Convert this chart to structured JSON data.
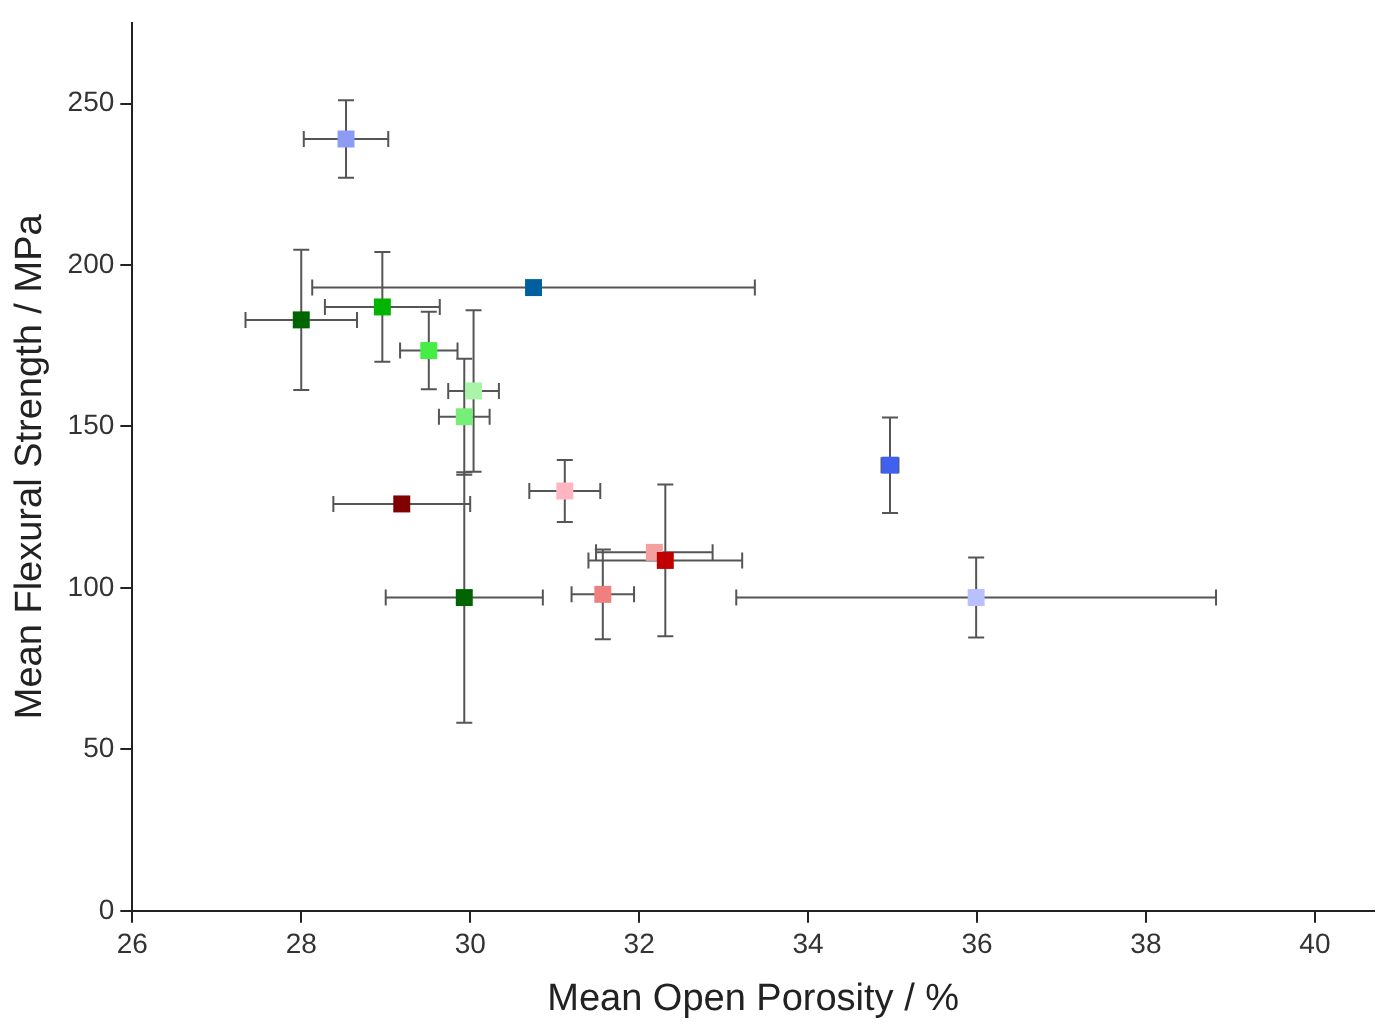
{
  "chart_data": {
    "type": "scatter",
    "xlabel": "Mean Open Porosity / %",
    "ylabel": "Mean Flexural Strength / MPa",
    "xlim": [
      26,
      40.7
    ],
    "xticks": [
      26,
      28,
      30,
      32,
      34,
      36,
      38,
      40
    ],
    "ylim": [
      0,
      275
    ],
    "yticks": [
      0,
      50,
      100,
      150,
      200,
      250
    ],
    "grid": false,
    "legend": false,
    "marker": "square",
    "x": [
      28.53,
      28.0,
      28.96,
      29.51,
      30.04,
      29.93,
      29.19,
      29.93,
      31.12,
      31.57,
      30.75,
      32.18,
      32.31,
      34.97,
      35.99
    ],
    "values": [
      239,
      183,
      187,
      173.5,
      161,
      153,
      126,
      97,
      130,
      98,
      193,
      111,
      108.5,
      138,
      97
    ],
    "colors": [
      "#8c9cf5",
      "#006400",
      "#00b400",
      "#44ee44",
      "#a8f5a8",
      "#77ee77",
      "#800000",
      "#006400",
      "#ffb6c1",
      "#f08080",
      "#005f9e",
      "#f4a0a0",
      "#c00000",
      "#4060f0",
      "#b8c0ff"
    ],
    "errors": [
      12,
      21.7,
      17,
      12,
      25,
      18,
      null,
      38.8,
      9.6,
      13.9,
      null,
      null,
      23.5,
      14.8,
      12.4
    ],
    "xerrors": [
      0.5,
      0.66,
      0.68,
      0.34,
      0.3,
      0.3,
      0.81,
      0.93,
      0.42,
      0.37,
      2.62,
      0.69,
      0.91,
      0.1,
      2.84
    ]
  }
}
